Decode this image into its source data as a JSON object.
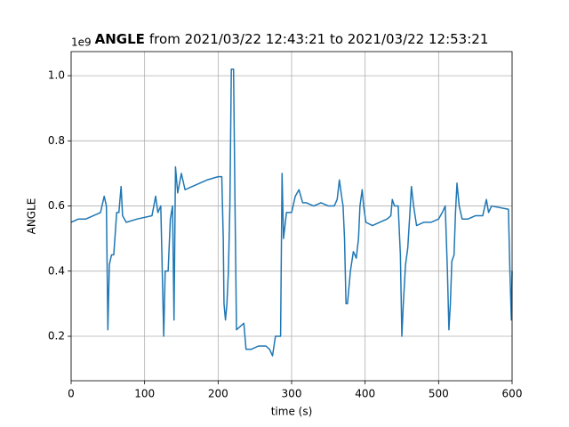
{
  "chart_data": {
    "type": "line",
    "title_bold": "ANGLE",
    "title": "from 2021/03/22 12:43:21 to 2021/03/22 12:53:21",
    "x_label": "time (s)",
    "y_label": "ANGLE",
    "y_offset_label": "1e9",
    "x": [
      0,
      10,
      20,
      30,
      40,
      45,
      48,
      50,
      52,
      55,
      58,
      62,
      65,
      68,
      70,
      75,
      90,
      110,
      115,
      118,
      122,
      126,
      128,
      132,
      135,
      138,
      140,
      142,
      145,
      150,
      155,
      165,
      175,
      185,
      200,
      205,
      207,
      208,
      210,
      212,
      214,
      216,
      218,
      221,
      223,
      225,
      230,
      235,
      238,
      245,
      255,
      265,
      270,
      274,
      278,
      282,
      285,
      287,
      289,
      293,
      300,
      305,
      310,
      315,
      320,
      330,
      340,
      350,
      358,
      362,
      365,
      368,
      370,
      372,
      374,
      376,
      380,
      384,
      388,
      391,
      393,
      396,
      398,
      401,
      410,
      420,
      430,
      435,
      437,
      440,
      445,
      448,
      450,
      452,
      455,
      458,
      461,
      463,
      466,
      470,
      480,
      490,
      500,
      505,
      509,
      512,
      514,
      516,
      518,
      521,
      523,
      525,
      528,
      532,
      540,
      550,
      560,
      565,
      568,
      572,
      595,
      597,
      599,
      600
    ],
    "series": [
      {
        "name": "ANGLE",
        "color": "#1f77b4",
        "values": [
          0.55,
          0.56,
          0.56,
          0.57,
          0.58,
          0.63,
          0.6,
          0.22,
          0.42,
          0.45,
          0.45,
          0.58,
          0.58,
          0.66,
          0.57,
          0.55,
          0.56,
          0.57,
          0.63,
          0.58,
          0.6,
          0.2,
          0.4,
          0.4,
          0.56,
          0.6,
          0.25,
          0.72,
          0.64,
          0.7,
          0.65,
          0.66,
          0.67,
          0.68,
          0.69,
          0.69,
          0.5,
          0.3,
          0.25,
          0.3,
          0.4,
          0.6,
          1.02,
          1.02,
          0.6,
          0.22,
          0.23,
          0.24,
          0.16,
          0.16,
          0.17,
          0.17,
          0.16,
          0.14,
          0.2,
          0.2,
          0.2,
          0.7,
          0.5,
          0.58,
          0.58,
          0.63,
          0.65,
          0.61,
          0.61,
          0.6,
          0.61,
          0.6,
          0.6,
          0.62,
          0.68,
          0.63,
          0.6,
          0.5,
          0.3,
          0.3,
          0.4,
          0.46,
          0.44,
          0.5,
          0.6,
          0.65,
          0.6,
          0.55,
          0.54,
          0.55,
          0.56,
          0.57,
          0.62,
          0.6,
          0.6,
          0.45,
          0.2,
          0.3,
          0.42,
          0.47,
          0.58,
          0.66,
          0.6,
          0.54,
          0.55,
          0.55,
          0.56,
          0.58,
          0.6,
          0.4,
          0.22,
          0.3,
          0.43,
          0.45,
          0.58,
          0.67,
          0.6,
          0.56,
          0.56,
          0.57,
          0.57,
          0.62,
          0.58,
          0.6,
          0.59,
          0.4,
          0.25,
          0.4
        ]
      }
    ],
    "xlim": [
      0,
      600
    ],
    "ylim": [
      0.0635,
      1.074
    ],
    "xticks": [
      0,
      100,
      200,
      300,
      400,
      500,
      600
    ],
    "yticks": [
      0.2,
      0.4,
      0.6,
      0.8,
      {
        "value": 1,
        "label": "1.0"
      }
    ],
    "grid": true
  }
}
